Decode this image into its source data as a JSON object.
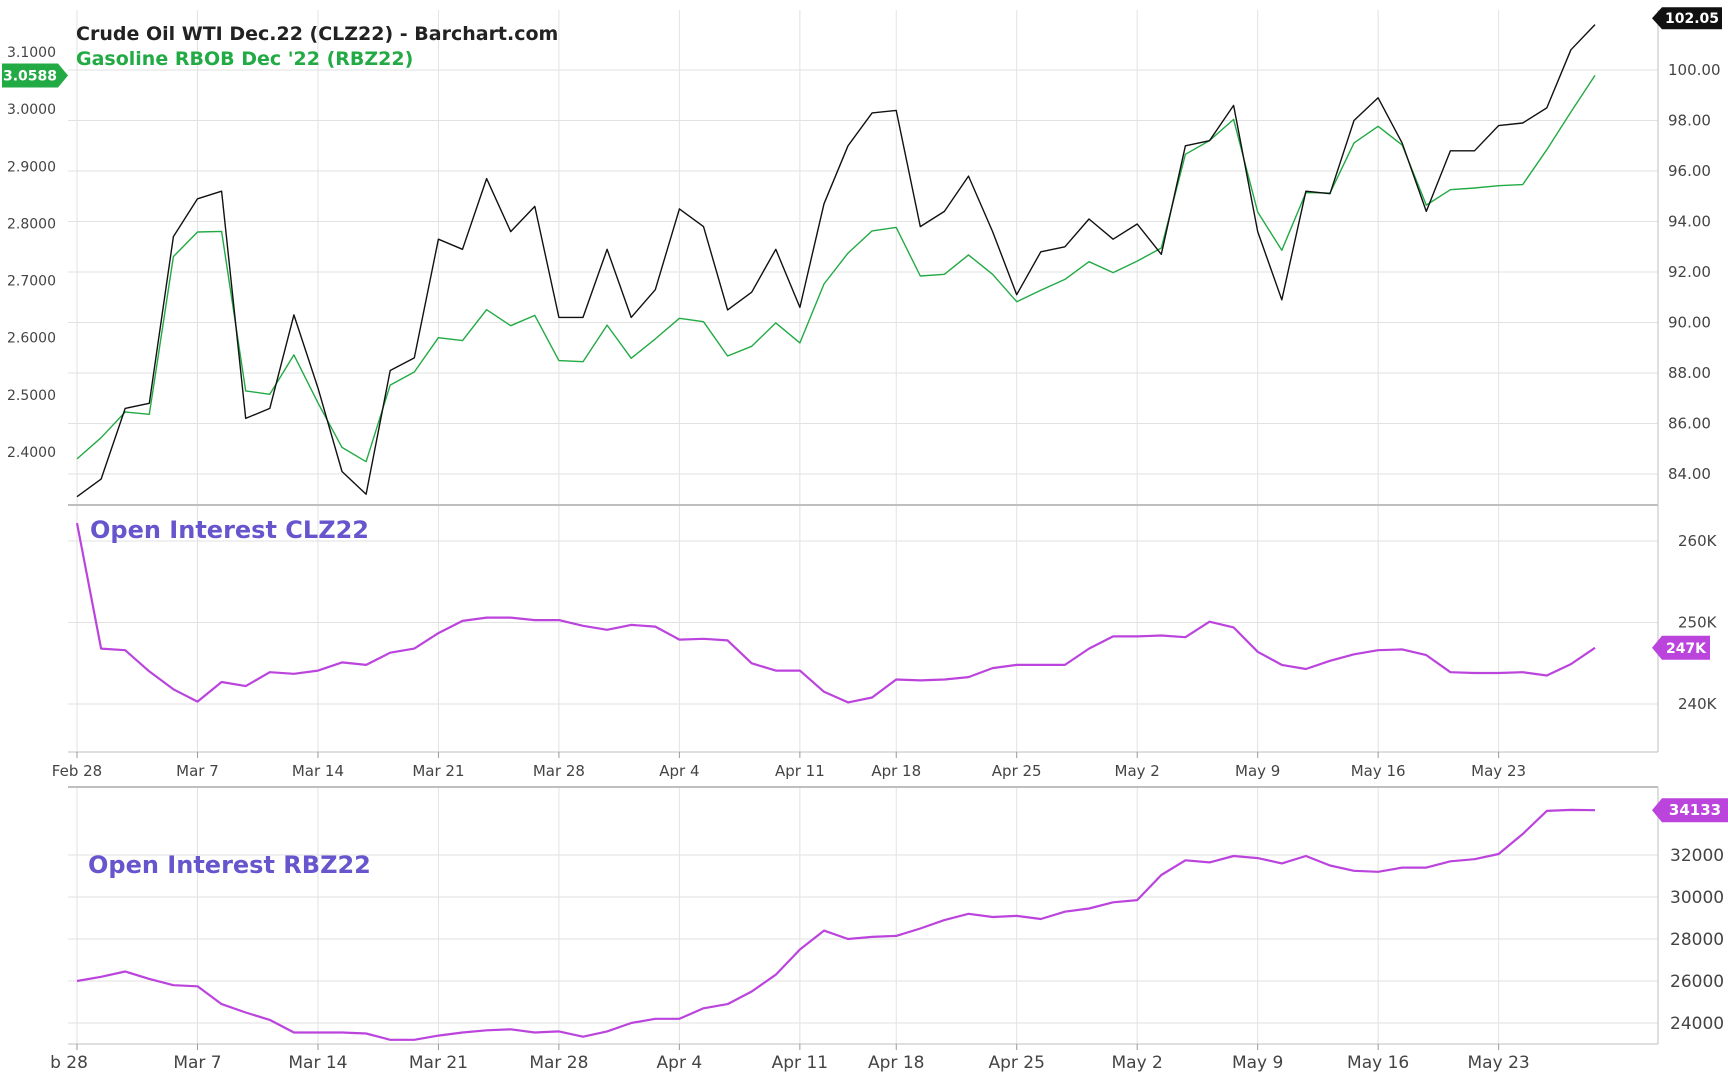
{
  "dates": [
    "Feb 28",
    "Mar 1",
    "Mar 2",
    "Mar 3",
    "Mar 4",
    "Mar 7",
    "Mar 8",
    "Mar 9",
    "Mar 10",
    "Mar 11",
    "Mar 14",
    "Mar 15",
    "Mar 16",
    "Mar 17",
    "Mar 18",
    "Mar 21",
    "Mar 22",
    "Mar 23",
    "Mar 24",
    "Mar 25",
    "Mar 28",
    "Mar 29",
    "Mar 30",
    "Mar 31",
    "Apr 1",
    "Apr 4",
    "Apr 5",
    "Apr 6",
    "Apr 7",
    "Apr 8",
    "Apr 11",
    "Apr 12",
    "Apr 13",
    "Apr 14",
    "Apr 18",
    "Apr 19",
    "Apr 20",
    "Apr 21",
    "Apr 22",
    "Apr 25",
    "Apr 26",
    "Apr 27",
    "Apr 28",
    "Apr 29",
    "May 2",
    "May 3",
    "May 4",
    "May 5",
    "May 6",
    "May 9",
    "May 10",
    "May 11",
    "May 12",
    "May 13",
    "May 16",
    "May 17",
    "May 18",
    "May 19",
    "May 20",
    "May 23",
    "May 24",
    "May 25",
    "May 26",
    "May 27"
  ],
  "chart_data": [
    {
      "type": "line",
      "series": [
        {
          "name": "Crude Oil WTI Dec.22 (CLZ22) - Barchart.com",
          "axis": "right",
          "color": "#111111",
          "values": [
            83.1,
            83.8,
            86.6,
            86.8,
            93.4,
            94.9,
            95.2,
            86.2,
            86.6,
            90.3,
            87.4,
            84.1,
            83.2,
            88.1,
            88.6,
            93.3,
            92.9,
            95.7,
            93.6,
            94.6,
            90.2,
            90.2,
            92.9,
            90.2,
            91.3,
            94.5,
            93.8,
            90.5,
            91.2,
            92.9,
            90.6,
            94.7,
            97.0,
            98.3,
            98.4,
            93.8,
            94.4,
            95.8,
            93.6,
            91.1,
            92.8,
            93.0,
            94.1,
            93.3,
            93.9,
            92.7,
            97.0,
            97.2,
            98.6,
            93.6,
            90.9,
            95.2,
            95.1,
            98.0,
            98.9,
            97.1,
            94.4,
            96.8,
            96.8,
            97.8,
            97.9,
            98.5,
            100.8,
            101.8
          ],
          "last_value": 102.05
        },
        {
          "name": "Gasoline RBOB Dec '22 (RBZ22)",
          "axis": "left",
          "color": "#22aa44",
          "values": [
            2.388,
            2.425,
            2.47,
            2.466,
            2.742,
            2.785,
            2.786,
            2.507,
            2.501,
            2.57,
            2.486,
            2.408,
            2.383,
            2.517,
            2.54,
            2.6,
            2.595,
            2.649,
            2.621,
            2.639,
            2.56,
            2.558,
            2.622,
            2.564,
            2.598,
            2.634,
            2.628,
            2.568,
            2.585,
            2.626,
            2.591,
            2.694,
            2.748,
            2.787,
            2.793,
            2.708,
            2.711,
            2.745,
            2.711,
            2.663,
            2.683,
            2.702,
            2.733,
            2.714,
            2.734,
            2.757,
            2.921,
            2.945,
            2.982,
            2.82,
            2.753,
            2.854,
            2.853,
            2.941,
            2.97,
            2.937,
            2.832,
            2.859,
            2.862,
            2.866,
            2.868,
            2.929,
            2.995,
            3.059
          ],
          "last_value": 3.0588
        }
      ],
      "y_left_ticks": [
        "2.4000",
        "2.5000",
        "2.6000",
        "2.7000",
        "2.8000",
        "2.9000",
        "3.0000",
        "3.1000"
      ],
      "y_right_ticks": [
        "84.00",
        "86.00",
        "88.00",
        "90.00",
        "92.00",
        "94.00",
        "96.00",
        "98.00",
        "100.00"
      ]
    },
    {
      "type": "line",
      "title": "Open Interest CLZ22",
      "series": [
        {
          "color": "#bb44dd",
          "values": [
            262200,
            246800,
            246600,
            244000,
            241800,
            240300,
            242700,
            242200,
            243900,
            243700,
            244100,
            245100,
            244800,
            246300,
            246800,
            248700,
            250200,
            250600,
            250600,
            250300,
            250300,
            249600,
            249100,
            249700,
            249500,
            247900,
            248000,
            247800,
            245000,
            244100,
            244100,
            241500,
            240200,
            240800,
            243000,
            242900,
            243000,
            243300,
            244400,
            244800,
            244800,
            244800,
            246800,
            248300,
            248300,
            248400,
            248200,
            250100,
            249400,
            246400,
            244800,
            244300,
            245300,
            246100,
            246600,
            246700,
            246000,
            243900,
            243800,
            243800,
            243900,
            243500,
            244900,
            246900
          ],
          "last_value": "247K"
        }
      ],
      "y_ticks": [
        "240K",
        "250K",
        "260K"
      ]
    },
    {
      "type": "line",
      "title": "Open Interest RBZ22",
      "series": [
        {
          "color": "#bb44dd",
          "values": [
            26000,
            26200,
            26450,
            26100,
            25800,
            25750,
            24900,
            24500,
            24150,
            23550,
            23550,
            23550,
            23500,
            23200,
            23200,
            23400,
            23550,
            23650,
            23700,
            23550,
            23600,
            23350,
            23600,
            24000,
            24200,
            24200,
            24700,
            24900,
            25500,
            26300,
            27500,
            28400,
            28000,
            28100,
            28150,
            28500,
            28900,
            29200,
            29050,
            29100,
            28950,
            29300,
            29450,
            29750,
            29850,
            31050,
            31750,
            31650,
            31950,
            31850,
            31600,
            31950,
            31500,
            31250,
            31200,
            31400,
            31400,
            31700,
            31800,
            32050,
            33000,
            34100,
            34150,
            34133
          ],
          "last_value": "34133"
        }
      ],
      "y_ticks": [
        "24000",
        "26000",
        "28000",
        "30000",
        "32000"
      ]
    }
  ],
  "x_axis_labels": [
    "Feb 28",
    "Mar 7",
    "Mar 14",
    "Mar 21",
    "Mar 28",
    "Apr 4",
    "Apr 11",
    "Apr 18",
    "Apr 25",
    "May 2",
    "May 9",
    "May 16",
    "May 23"
  ],
  "x_axis_labels_bottom": [
    "b 28",
    "Mar 7",
    "Mar 14",
    "Mar 21",
    "Mar 28",
    "Apr 4",
    "Apr 11",
    "Apr 18",
    "Apr 25",
    "May 2",
    "May 9",
    "May 16",
    "May 23"
  ]
}
